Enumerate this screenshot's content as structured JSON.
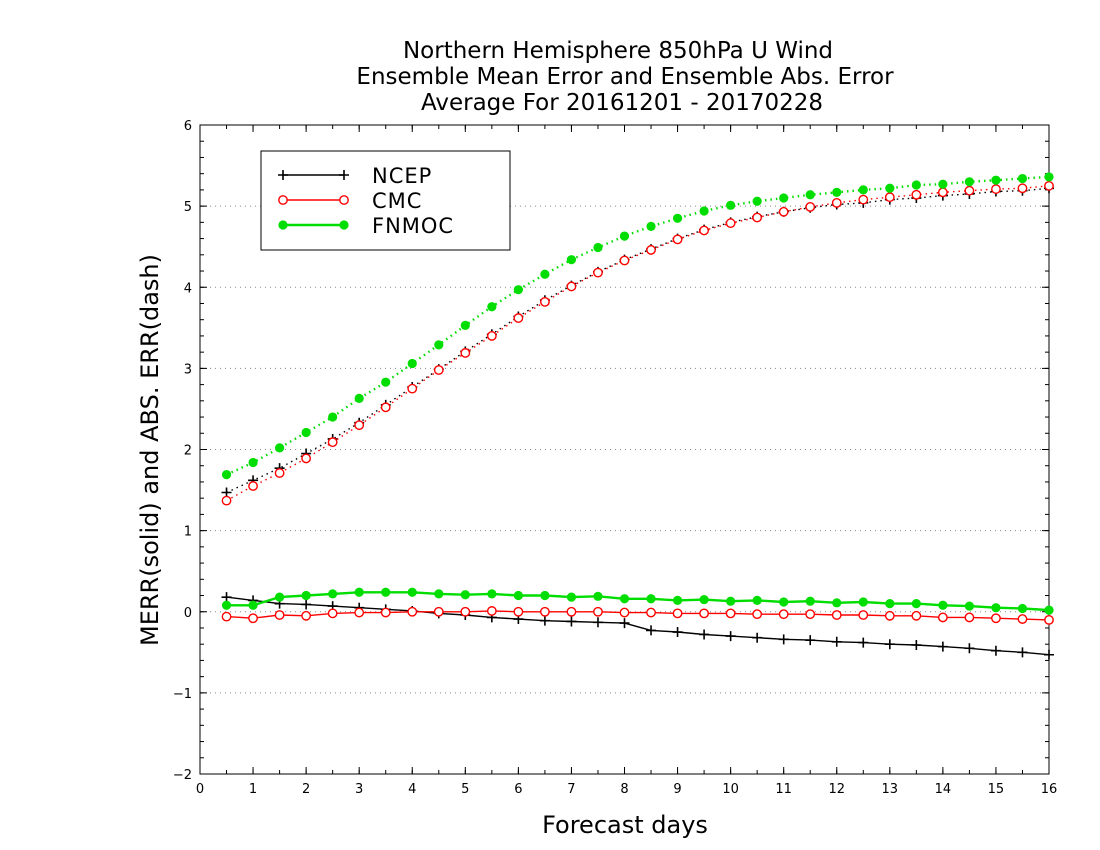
{
  "chart_data": {
    "type": "line",
    "title_lines": [
      "Northern Hemisphere 850hPa U Wind",
      "Ensemble Mean Error and Ensemble Abs. Error",
      "Average For 20161201 - 20170228"
    ],
    "xlabel": "Forecast days",
    "ylabel": "MERR(solid) and ABS. ERR(dash)",
    "xlim": [
      0,
      16
    ],
    "ylim": [
      -2,
      6
    ],
    "xticks": [
      "0",
      "1",
      "2",
      "3",
      "4",
      "5",
      "6",
      "7",
      "8",
      "9",
      "10",
      "11",
      "12",
      "13",
      "14",
      "15",
      "16"
    ],
    "yticks": [
      "−2",
      "−1",
      "0",
      "1",
      "2",
      "3",
      "4",
      "5",
      "6"
    ],
    "grid": "horizontal-dotted",
    "legend_position": "top-left",
    "x": [
      0.5,
      1,
      1.5,
      2,
      2.5,
      3,
      3.5,
      4,
      4.5,
      5,
      5.5,
      6,
      6.5,
      7,
      7.5,
      8,
      8.5,
      9,
      9.5,
      10,
      10.5,
      11,
      11.5,
      12,
      12.5,
      13,
      13.5,
      14,
      14.5,
      15,
      15.5,
      16
    ],
    "series": [
      {
        "name": "NCEP",
        "color": "#000000",
        "marker": "plus",
        "merr": [
          0.18,
          0.14,
          0.1,
          0.09,
          0.07,
          0.05,
          0.03,
          0.01,
          -0.02,
          -0.04,
          -0.07,
          -0.09,
          -0.11,
          -0.12,
          -0.13,
          -0.14,
          -0.23,
          -0.25,
          -0.28,
          -0.3,
          -0.32,
          -0.34,
          -0.35,
          -0.37,
          -0.38,
          -0.4,
          -0.41,
          -0.43,
          -0.45,
          -0.48,
          -0.5,
          -0.53
        ],
        "abs_err": [
          1.47,
          1.62,
          1.77,
          1.95,
          2.13,
          2.33,
          2.55,
          2.77,
          2.99,
          3.21,
          3.42,
          3.64,
          3.84,
          4.02,
          4.19,
          4.34,
          4.47,
          4.6,
          4.71,
          4.8,
          4.87,
          4.93,
          4.98,
          5.02,
          5.04,
          5.08,
          5.1,
          5.13,
          5.15,
          5.18,
          5.19,
          5.22
        ]
      },
      {
        "name": "CMC",
        "color": "#ff0000",
        "marker": "open-circle",
        "merr": [
          -0.06,
          -0.08,
          -0.04,
          -0.05,
          -0.02,
          -0.01,
          -0.01,
          0.0,
          0.0,
          0.0,
          0.01,
          0.0,
          0.0,
          0.0,
          0.0,
          -0.01,
          -0.01,
          -0.02,
          -0.02,
          -0.02,
          -0.03,
          -0.03,
          -0.03,
          -0.04,
          -0.04,
          -0.05,
          -0.05,
          -0.07,
          -0.07,
          -0.08,
          -0.09,
          -0.1
        ],
        "abs_err": [
          1.37,
          1.55,
          1.71,
          1.89,
          2.09,
          2.3,
          2.52,
          2.75,
          2.98,
          3.19,
          3.4,
          3.62,
          3.82,
          4.01,
          4.18,
          4.33,
          4.46,
          4.59,
          4.7,
          4.79,
          4.86,
          4.93,
          4.99,
          5.04,
          5.08,
          5.11,
          5.14,
          5.17,
          5.19,
          5.21,
          5.22,
          5.25
        ]
      },
      {
        "name": "FNMOC",
        "color": "#00dd00",
        "marker": "filled-circle",
        "merr": [
          0.08,
          0.08,
          0.18,
          0.2,
          0.22,
          0.24,
          0.24,
          0.24,
          0.22,
          0.21,
          0.22,
          0.2,
          0.2,
          0.18,
          0.19,
          0.16,
          0.16,
          0.14,
          0.15,
          0.13,
          0.14,
          0.12,
          0.13,
          0.11,
          0.12,
          0.1,
          0.1,
          0.08,
          0.07,
          0.05,
          0.04,
          0.02
        ],
        "abs_err": [
          1.69,
          1.84,
          2.02,
          2.21,
          2.4,
          2.63,
          2.83,
          3.06,
          3.29,
          3.53,
          3.76,
          3.97,
          4.16,
          4.34,
          4.49,
          4.63,
          4.75,
          4.85,
          4.94,
          5.01,
          5.06,
          5.1,
          5.14,
          5.17,
          5.2,
          5.22,
          5.26,
          5.27,
          5.3,
          5.32,
          5.34,
          5.36
        ]
      }
    ]
  }
}
